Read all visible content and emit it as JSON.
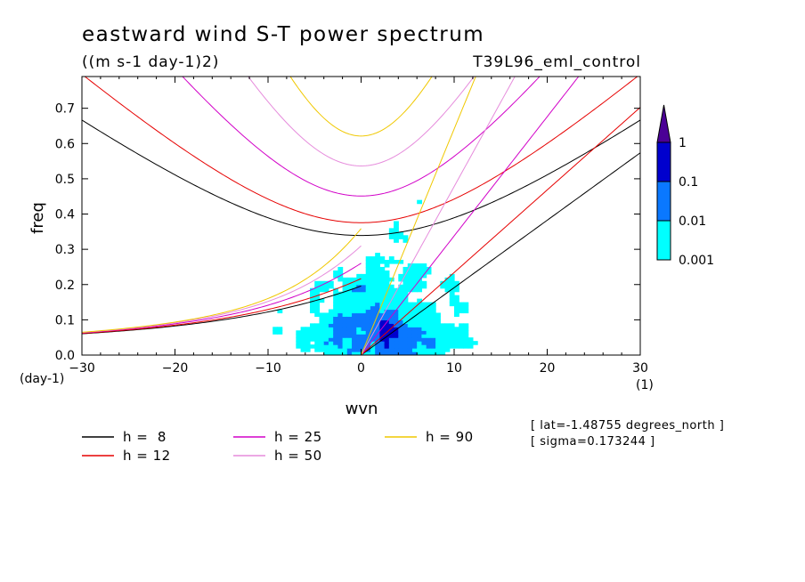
{
  "chart_data": {
    "type": "heatmap",
    "title": "eastward wind S-T power spectrum",
    "subtitle": "((m s-1 day-1)2)",
    "run_label": "T39L96_eml_control",
    "xlabel": "wvn",
    "ylabel": "freq",
    "x_unit": "(1)",
    "y_unit": "(day-1)",
    "xlim": [
      -30,
      30
    ],
    "ylim": [
      0,
      0.79
    ],
    "x_ticks": [
      "−30",
      "−20",
      "−10",
      "0",
      "10",
      "20",
      "30"
    ],
    "x_tick_values": [
      -30,
      -20,
      -10,
      0,
      10,
      20,
      30
    ],
    "y_ticks": [
      "0.0",
      "0.1",
      "0.2",
      "0.3",
      "0.4",
      "0.5",
      "0.6",
      "0.7"
    ],
    "y_tick_values": [
      0,
      0.1,
      0.2,
      0.3,
      0.4,
      0.5,
      0.6,
      0.7
    ],
    "colorbar": {
      "levels": [
        "0.001",
        "0.01",
        "0.1",
        "1"
      ],
      "colors": [
        "#00ffff",
        "#0a78ff",
        "#0000cd",
        "#4b0096"
      ]
    },
    "info_lines": [
      "[ lat=-1.48755 degrees_north ]",
      "[ sigma=0.173244 ]"
    ],
    "dispersion_curves": [
      {
        "label": "h =  8",
        "h": 8,
        "color": "#000000"
      },
      {
        "label": "h = 12",
        "h": 12,
        "color": "#e60000"
      },
      {
        "label": "h = 25",
        "h": 25,
        "color": "#d200c8"
      },
      {
        "label": "h = 50",
        "h": 50,
        "color": "#e68cdc"
      },
      {
        "label": "h = 90",
        "h": 90,
        "color": "#f0c800"
      }
    ],
    "grid": false,
    "legend_position": "bottom"
  }
}
